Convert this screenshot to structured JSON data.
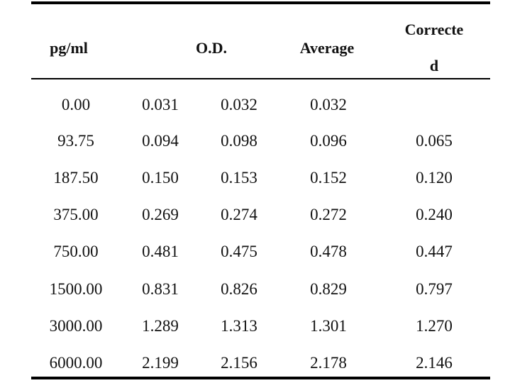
{
  "table": {
    "headers": {
      "concentration": "pg/ml",
      "od": "O.D.",
      "average": "Average",
      "corrected_line1": "Correcte",
      "corrected_line2": "d"
    },
    "rows": [
      {
        "conc": "0.00",
        "od1": "0.031",
        "od2": "0.032",
        "avg": "0.032",
        "corr": ""
      },
      {
        "conc": "93.75",
        "od1": "0.094",
        "od2": "0.098",
        "avg": "0.096",
        "corr": "0.065"
      },
      {
        "conc": "187.50",
        "od1": "0.150",
        "od2": "0.153",
        "avg": "0.152",
        "corr": "0.120"
      },
      {
        "conc": "375.00",
        "od1": "0.269",
        "od2": "0.274",
        "avg": "0.272",
        "corr": "0.240"
      },
      {
        "conc": "750.00",
        "od1": "0.481",
        "od2": "0.475",
        "avg": "0.478",
        "corr": "0.447"
      },
      {
        "conc": "1500.00",
        "od1": "0.831",
        "od2": "0.826",
        "avg": "0.829",
        "corr": "0.797"
      },
      {
        "conc": "3000.00",
        "od1": "1.289",
        "od2": "1.313",
        "avg": "1.301",
        "corr": "1.270"
      },
      {
        "conc": "6000.00",
        "od1": "2.199",
        "od2": "2.156",
        "avg": "2.178",
        "corr": "2.146"
      }
    ]
  }
}
